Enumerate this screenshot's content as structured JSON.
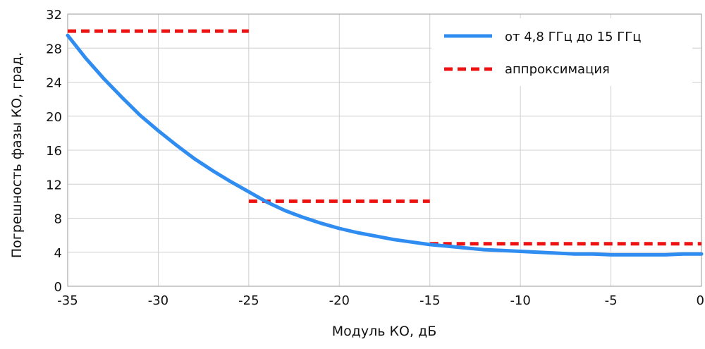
{
  "chart_data": {
    "type": "line",
    "xlabel": "Модуль КО, дБ",
    "ylabel": "Погрешность  фазы КО, град.",
    "xlim": [
      -35,
      0
    ],
    "ylim": [
      0,
      32
    ],
    "x_ticks": [
      -35,
      -30,
      -25,
      -20,
      -15,
      -10,
      -5,
      0
    ],
    "y_ticks": [
      0,
      4,
      8,
      12,
      16,
      20,
      24,
      28,
      32
    ],
    "grid": true,
    "legend_position": "top-right",
    "series": [
      {
        "name": "от 4,8 ГГц до 15 ГГц",
        "style": "solid",
        "color": "#2f8cf0",
        "x": [
          -35,
          -34,
          -33,
          -32,
          -31,
          -30,
          -29,
          -28,
          -27,
          -26,
          -25,
          -24,
          -23,
          -22,
          -21,
          -20,
          -19,
          -18,
          -17,
          -16,
          -15,
          -14,
          -13,
          -12,
          -11,
          -10,
          -9,
          -8,
          -7,
          -6,
          -5,
          -4,
          -3,
          -2,
          -1,
          0
        ],
        "y": [
          29.5,
          26.8,
          24.4,
          22.2,
          20.1,
          18.3,
          16.6,
          15.0,
          13.6,
          12.3,
          11.1,
          9.9,
          8.9,
          8.1,
          7.4,
          6.8,
          6.3,
          5.9,
          5.5,
          5.2,
          4.9,
          4.7,
          4.5,
          4.3,
          4.2,
          4.1,
          4.0,
          3.9,
          3.8,
          3.8,
          3.7,
          3.7,
          3.7,
          3.7,
          3.8,
          3.8
        ]
      },
      {
        "name": "аппроксимация",
        "style": "dashed",
        "color": "#ee1111",
        "segments": [
          {
            "x": [
              -35,
              -25
            ],
            "y": [
              30,
              30
            ]
          },
          {
            "x": [
              -25,
              -15
            ],
            "y": [
              10,
              10
            ]
          },
          {
            "x": [
              -15,
              0
            ],
            "y": [
              5,
              5
            ]
          }
        ]
      }
    ]
  }
}
